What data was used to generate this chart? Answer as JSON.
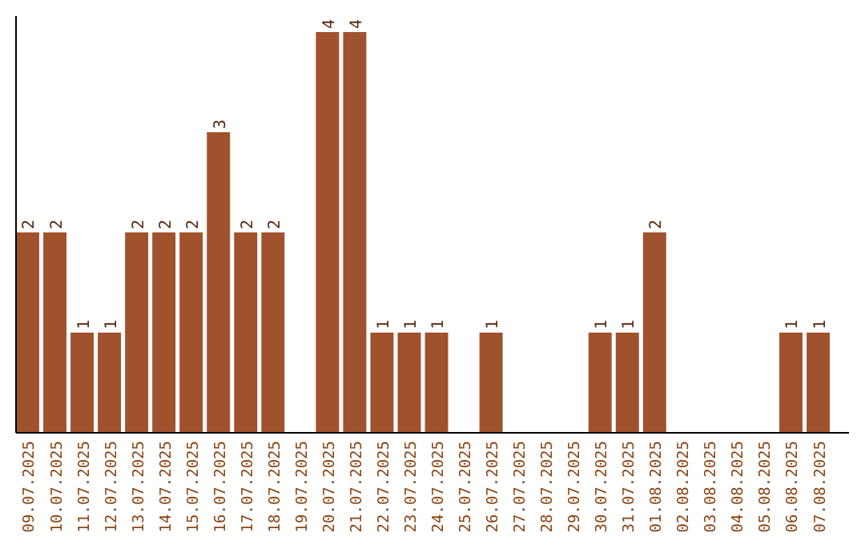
{
  "chart_data": {
    "type": "bar",
    "categories": [
      "09.07.2025",
      "10.07.2025",
      "11.07.2025",
      "12.07.2025",
      "13.07.2025",
      "14.07.2025",
      "15.07.2025",
      "16.07.2025",
      "17.07.2025",
      "18.07.2025",
      "19.07.2025",
      "20.07.2025",
      "21.07.2025",
      "22.07.2025",
      "23.07.2025",
      "24.07.2025",
      "25.07.2025",
      "26.07.2025",
      "27.07.2025",
      "28.07.2025",
      "29.07.2025",
      "30.07.2025",
      "31.07.2025",
      "01.08.2025",
      "02.08.2025",
      "03.08.2025",
      "04.08.2025",
      "05.08.2025",
      "06.08.2025",
      "07.08.2025"
    ],
    "values": [
      2,
      2,
      1,
      1,
      2,
      2,
      2,
      3,
      2,
      2,
      0,
      4,
      4,
      1,
      1,
      1,
      0,
      1,
      0,
      0,
      0,
      1,
      1,
      2,
      0,
      0,
      0,
      0,
      1,
      1
    ],
    "value_labels": [
      "2",
      "2",
      "1",
      "1",
      "2",
      "2",
      "2",
      "3",
      "2",
      "2",
      null,
      "4",
      "4",
      "1",
      "1",
      "1",
      null,
      "1",
      null,
      null,
      null,
      "1",
      "1",
      "2",
      null,
      null,
      null,
      null,
      "1",
      "1"
    ],
    "color": "#a0522d",
    "ylim": [
      0,
      4
    ],
    "tick_labels": "x"
  }
}
